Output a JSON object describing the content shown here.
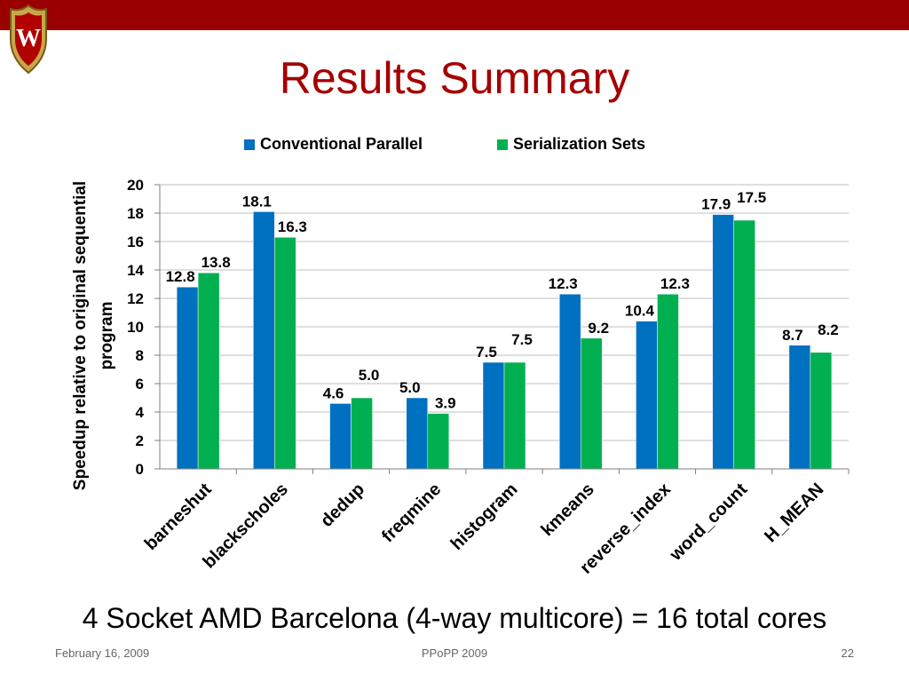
{
  "slide": {
    "title": "Results Summary",
    "subtitle": "4 Socket AMD Barcelona (4-way multicore) = 16 total cores",
    "footer": {
      "date": "February 16, 2009",
      "conference": "PPoPP 2009",
      "page": "22"
    },
    "logo_icon": "university-crest-icon"
  },
  "colors": {
    "header_bar": "#9b0000",
    "title": "#a50000",
    "series1": "#0070c0",
    "series2": "#00b050"
  },
  "chart_data": {
    "type": "bar",
    "categories": [
      "barneshut",
      "blackscholes",
      "dedup",
      "freqmine",
      "histogram",
      "kmeans",
      "reverse_index",
      "word_count",
      "H_MEAN"
    ],
    "series": [
      {
        "name": "Conventional Parallel",
        "values": [
          12.8,
          18.1,
          4.6,
          5.0,
          7.5,
          12.3,
          10.4,
          17.9,
          8.7
        ],
        "labels": [
          "12.8",
          "18.1",
          "4.6",
          "5.0",
          "7.5",
          "12.3",
          "10.4",
          "17.9",
          "8.7"
        ]
      },
      {
        "name": "Serialization Sets",
        "values": [
          13.8,
          16.3,
          5.0,
          3.9,
          7.5,
          9.2,
          12.3,
          17.5,
          8.2
        ],
        "labels": [
          "13.8",
          "16.3",
          "5.0",
          "3.9",
          "7.5",
          "9.2",
          "12.3",
          "17.5",
          "8.2"
        ]
      }
    ],
    "title": "",
    "xlabel": "",
    "ylabel": "Speedup relative to original sequential program",
    "ylabel_lines": [
      "Speedup relative to original sequential",
      "program"
    ],
    "ylim": [
      0,
      20
    ],
    "yticks": [
      0,
      2,
      4,
      6,
      8,
      10,
      12,
      14,
      16,
      18,
      20
    ],
    "grid": true,
    "legend": "top-center"
  }
}
